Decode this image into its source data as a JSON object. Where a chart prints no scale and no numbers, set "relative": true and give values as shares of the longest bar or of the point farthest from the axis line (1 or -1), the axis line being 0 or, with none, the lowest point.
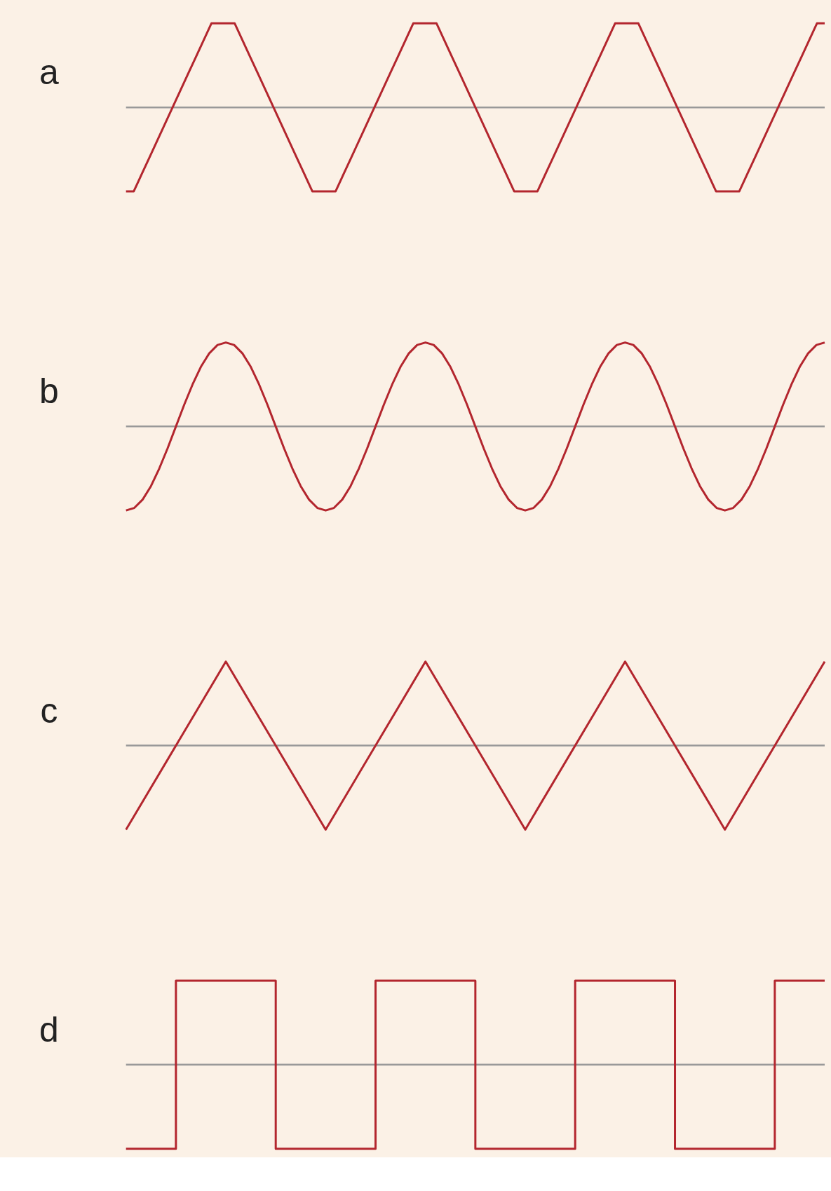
{
  "chart_data": [
    {
      "type": "line",
      "title": "a",
      "relative": true,
      "categories": [
        null,
        null,
        null,
        null,
        null,
        null,
        null,
        null,
        null,
        null,
        null,
        null,
        null,
        null,
        null,
        null,
        null,
        null,
        null,
        null,
        null,
        null,
        null,
        null,
        null,
        null,
        null,
        null,
        null,
        null,
        null,
        null,
        null,
        null,
        null,
        null,
        null,
        null,
        null,
        null,
        null,
        null,
        null,
        null,
        null,
        null,
        null,
        null,
        null,
        null,
        null,
        null,
        null,
        null,
        null,
        null,
        null,
        null,
        null,
        null,
        null,
        null,
        null,
        null,
        null,
        null,
        null,
        null,
        null,
        null,
        null,
        null,
        null,
        null,
        null,
        null,
        null,
        null,
        null,
        null,
        null,
        null,
        null,
        null,
        null,
        null,
        null,
        null,
        null,
        null,
        null
      ],
      "series": [
        {
          "color": "#b3262e",
          "values": [
            -1,
            -1,
            -0.8,
            -0.6,
            -0.4,
            -0.2,
            0,
            0.2,
            0.4,
            0.6,
            0.8,
            1,
            1,
            1,
            1,
            0.8,
            0.6,
            0.4,
            0.2,
            0,
            -0.2,
            -0.4,
            -0.6,
            -0.8,
            -1,
            -1,
            -1,
            -1,
            -0.8,
            -0.6,
            -0.4,
            -0.2,
            0,
            0.2,
            0.4,
            0.6,
            0.8,
            1,
            1,
            1,
            1,
            0.8,
            0.6,
            0.4,
            0.2,
            0,
            -0.2,
            -0.4,
            -0.6,
            -0.8,
            -1,
            -1,
            -1,
            -1,
            -0.8,
            -0.6,
            -0.4,
            -0.2,
            0,
            0.2,
            0.4,
            0.6,
            0.8,
            1,
            1,
            1,
            1,
            0.8,
            0.6,
            0.4,
            0.2,
            0,
            -0.2,
            -0.4,
            -0.6,
            -0.8,
            -1,
            -1,
            -1,
            -1,
            -0.8,
            -0.6,
            -0.4,
            -0.2,
            0,
            0.2,
            0.4,
            0.6,
            0.8,
            1,
            1
          ]
        }
      ],
      "ref_lines": [
        {
          "axis": "y",
          "value": 0,
          "color": "#999999"
        }
      ]
    },
    {
      "type": "line",
      "title": "b",
      "relative": true,
      "categories": [
        null,
        null,
        null,
        null,
        null,
        null,
        null,
        null,
        null,
        null,
        null,
        null,
        null,
        null,
        null,
        null,
        null,
        null,
        null,
        null,
        null,
        null,
        null,
        null,
        null,
        null,
        null,
        null,
        null,
        null,
        null,
        null,
        null,
        null,
        null,
        null,
        null,
        null,
        null,
        null,
        null,
        null,
        null,
        null,
        null,
        null,
        null,
        null,
        null,
        null,
        null,
        null,
        null,
        null,
        null,
        null,
        null,
        null,
        null,
        null,
        null,
        null,
        null,
        null,
        null,
        null,
        null,
        null,
        null,
        null,
        null,
        null,
        null,
        null,
        null,
        null,
        null,
        null,
        null,
        null,
        null,
        null,
        null,
        null,
        null
      ],
      "series": [
        {
          "color": "#b3262e",
          "values": [
            -1,
            -0.97,
            -0.87,
            -0.71,
            -0.5,
            -0.26,
            0,
            0.26,
            0.5,
            0.71,
            0.87,
            0.97,
            1,
            0.97,
            0.87,
            0.71,
            0.5,
            0.26,
            0,
            -0.26,
            -0.5,
            -0.71,
            -0.87,
            -0.97,
            -1,
            -0.97,
            -0.87,
            -0.71,
            -0.5,
            -0.26,
            0,
            0.26,
            0.5,
            0.71,
            0.87,
            0.97,
            1,
            0.97,
            0.87,
            0.71,
            0.5,
            0.26,
            0,
            -0.26,
            -0.5,
            -0.71,
            -0.87,
            -0.97,
            -1,
            -0.97,
            -0.87,
            -0.71,
            -0.5,
            -0.26,
            0,
            0.26,
            0.5,
            0.71,
            0.87,
            0.97,
            1,
            0.97,
            0.87,
            0.71,
            0.5,
            0.26,
            0,
            -0.26,
            -0.5,
            -0.71,
            -0.87,
            -0.97,
            -1,
            -0.97,
            -0.87,
            -0.71,
            -0.5,
            -0.26,
            0,
            0.26,
            0.5,
            0.71,
            0.87,
            0.97,
            1
          ]
        }
      ],
      "ref_lines": [
        {
          "axis": "y",
          "value": 0,
          "color": "#999999"
        }
      ]
    },
    {
      "type": "line",
      "title": "c",
      "relative": true,
      "categories": [
        null,
        null,
        null,
        null,
        null,
        null,
        null,
        null
      ],
      "series": [
        {
          "color": "#b3262e",
          "values": [
            -1,
            1,
            -1,
            1,
            -1,
            1,
            -1,
            1
          ]
        }
      ],
      "ref_lines": [
        {
          "axis": "y",
          "value": 0,
          "color": "#999999"
        }
      ]
    },
    {
      "type": "step",
      "title": "d",
      "relative": true,
      "categories": [
        null,
        null,
        null,
        null,
        null,
        null,
        null,
        null,
        null,
        null,
        null,
        null,
        null,
        null,
        null
      ],
      "series": [
        {
          "color": "#b3262e",
          "values": [
            -1,
            1,
            1,
            -1,
            -1,
            1,
            1,
            -1,
            -1,
            1,
            1,
            -1,
            -1,
            1,
            1
          ]
        }
      ],
      "ref_lines": [
        {
          "axis": "y",
          "value": 0,
          "color": "#999999"
        }
      ]
    }
  ]
}
